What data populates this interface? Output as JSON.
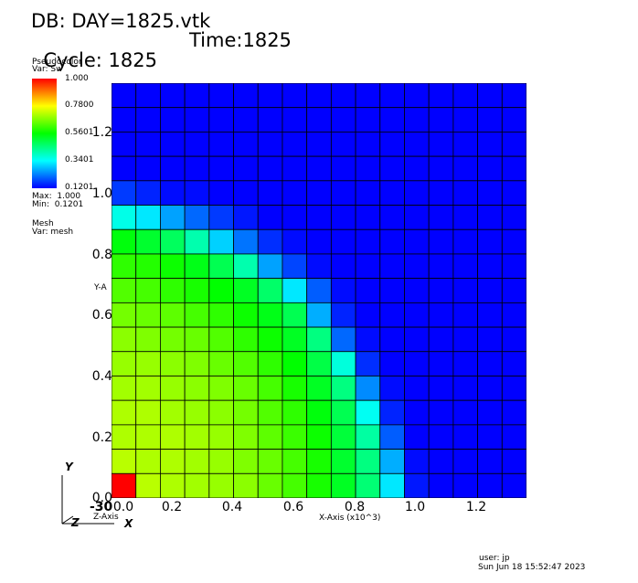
{
  "header": {
    "db_line": "DB: DAY=1825.vtk",
    "cycle_line": "Cycle: 1825",
    "time_line": "Time:1825"
  },
  "legend": {
    "plot_type": "Pseudocolor",
    "var_line": "Var: Sw",
    "colorbar_ticks": [
      "1.000",
      "0.7800",
      "0.5601",
      "0.3401",
      "0.1201"
    ],
    "max_line": "Max:  1.000",
    "min_line": "Min:  0.1201",
    "mesh_label": "Mesh",
    "mesh_var_line": "Var: mesh"
  },
  "axes": {
    "y_label_partial": "Y-A",
    "x_label": "X-Axis (x10^3)",
    "z_axis_label": "Z-Axis",
    "y_ticks": [
      "1.2",
      "1.0",
      "0.8",
      "0.6",
      "0.4",
      "0.2",
      "0.0"
    ],
    "x_ticks": [
      "0.0",
      "0.2",
      "0.4",
      "0.6",
      "0.8",
      "1.0",
      "1.2"
    ],
    "x_origin_overlap": "-30",
    "triad": {
      "y": "Y",
      "z": "Z",
      "x": "X"
    }
  },
  "footer": {
    "user": "user: jp",
    "timestamp": "Sun Jun 18 15:52:47 2023"
  },
  "grid_values": [
    [
      0.12,
      0.12,
      0.12,
      0.12,
      0.12,
      0.12,
      0.12,
      0.12,
      0.12,
      0.12,
      0.12,
      0.12,
      0.12,
      0.12,
      0.12,
      0.12,
      0.12
    ],
    [
      0.12,
      0.12,
      0.12,
      0.12,
      0.12,
      0.12,
      0.12,
      0.12,
      0.12,
      0.12,
      0.12,
      0.12,
      0.12,
      0.12,
      0.12,
      0.12,
      0.12
    ],
    [
      0.12,
      0.12,
      0.12,
      0.12,
      0.12,
      0.12,
      0.12,
      0.12,
      0.12,
      0.12,
      0.12,
      0.12,
      0.12,
      0.12,
      0.12,
      0.12,
      0.12
    ],
    [
      0.12,
      0.12,
      0.12,
      0.12,
      0.12,
      0.12,
      0.12,
      0.12,
      0.12,
      0.12,
      0.12,
      0.12,
      0.12,
      0.12,
      0.12,
      0.12,
      0.12
    ],
    [
      0.17,
      0.15,
      0.13,
      0.13,
      0.12,
      0.12,
      0.12,
      0.12,
      0.12,
      0.12,
      0.12,
      0.12,
      0.12,
      0.12,
      0.12,
      0.12,
      0.12
    ],
    [
      0.36,
      0.32,
      0.26,
      0.21,
      0.17,
      0.14,
      0.12,
      0.12,
      0.12,
      0.12,
      0.12,
      0.12,
      0.12,
      0.12,
      0.12,
      0.12,
      0.12
    ],
    [
      0.55,
      0.52,
      0.48,
      0.41,
      0.3,
      0.22,
      0.16,
      0.13,
      0.12,
      0.12,
      0.12,
      0.12,
      0.12,
      0.12,
      0.12,
      0.12,
      0.12
    ],
    [
      0.6,
      0.59,
      0.57,
      0.54,
      0.49,
      0.41,
      0.26,
      0.18,
      0.13,
      0.12,
      0.12,
      0.12,
      0.12,
      0.12,
      0.12,
      0.12,
      0.12
    ],
    [
      0.63,
      0.62,
      0.6,
      0.58,
      0.56,
      0.53,
      0.47,
      0.32,
      0.2,
      0.13,
      0.12,
      0.12,
      0.12,
      0.12,
      0.12,
      0.12,
      0.12
    ],
    [
      0.66,
      0.65,
      0.64,
      0.62,
      0.6,
      0.57,
      0.54,
      0.49,
      0.27,
      0.15,
      0.12,
      0.12,
      0.12,
      0.12,
      0.12,
      0.12,
      0.12
    ],
    [
      0.68,
      0.67,
      0.66,
      0.65,
      0.63,
      0.6,
      0.57,
      0.53,
      0.45,
      0.21,
      0.13,
      0.12,
      0.12,
      0.12,
      0.12,
      0.12,
      0.12
    ],
    [
      0.69,
      0.69,
      0.68,
      0.67,
      0.65,
      0.63,
      0.6,
      0.56,
      0.5,
      0.37,
      0.16,
      0.12,
      0.12,
      0.12,
      0.12,
      0.12,
      0.12
    ],
    [
      0.7,
      0.7,
      0.69,
      0.68,
      0.67,
      0.65,
      0.62,
      0.58,
      0.53,
      0.45,
      0.24,
      0.13,
      0.12,
      0.12,
      0.12,
      0.12,
      0.12
    ],
    [
      0.71,
      0.71,
      0.7,
      0.69,
      0.68,
      0.66,
      0.63,
      0.6,
      0.55,
      0.49,
      0.35,
      0.15,
      0.12,
      0.12,
      0.12,
      0.12,
      0.12
    ],
    [
      0.71,
      0.71,
      0.71,
      0.7,
      0.69,
      0.67,
      0.64,
      0.61,
      0.57,
      0.51,
      0.42,
      0.2,
      0.12,
      0.12,
      0.12,
      0.12,
      0.12
    ],
    [
      0.72,
      0.71,
      0.71,
      0.7,
      0.69,
      0.67,
      0.65,
      0.62,
      0.58,
      0.52,
      0.45,
      0.27,
      0.13,
      0.12,
      0.12,
      0.12,
      0.12
    ],
    [
      1.0,
      0.72,
      0.71,
      0.7,
      0.69,
      0.68,
      0.65,
      0.62,
      0.58,
      0.53,
      0.46,
      0.32,
      0.14,
      0.12,
      0.12,
      0.12,
      0.12
    ]
  ]
}
